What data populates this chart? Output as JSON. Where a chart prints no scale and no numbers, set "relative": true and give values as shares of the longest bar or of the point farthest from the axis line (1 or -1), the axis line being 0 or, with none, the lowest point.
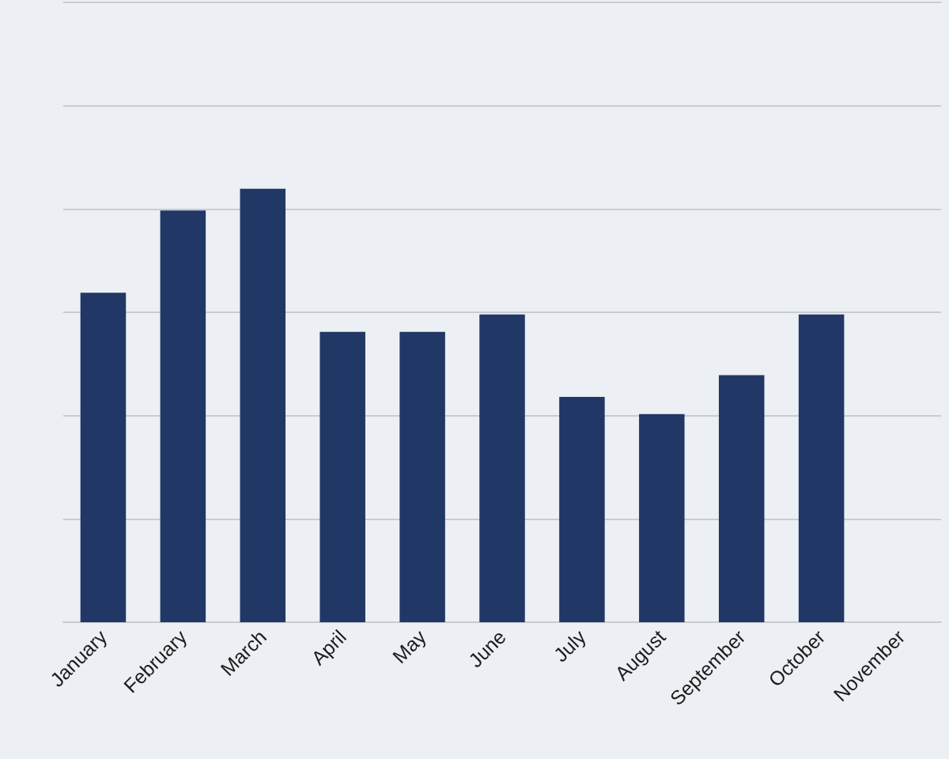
{
  "chart_data": {
    "type": "bar",
    "relative": true,
    "categories": [
      "January",
      "February",
      "March",
      "April",
      "May",
      "June",
      "July",
      "August",
      "September",
      "October",
      "November"
    ],
    "values": [
      0.76,
      0.95,
      1,
      0.67,
      0.67,
      0.71,
      0.52,
      0.48,
      0.57,
      0.71,
      null
    ],
    "color": "#213866",
    "grid": "y",
    "tick_labels": "x"
  }
}
